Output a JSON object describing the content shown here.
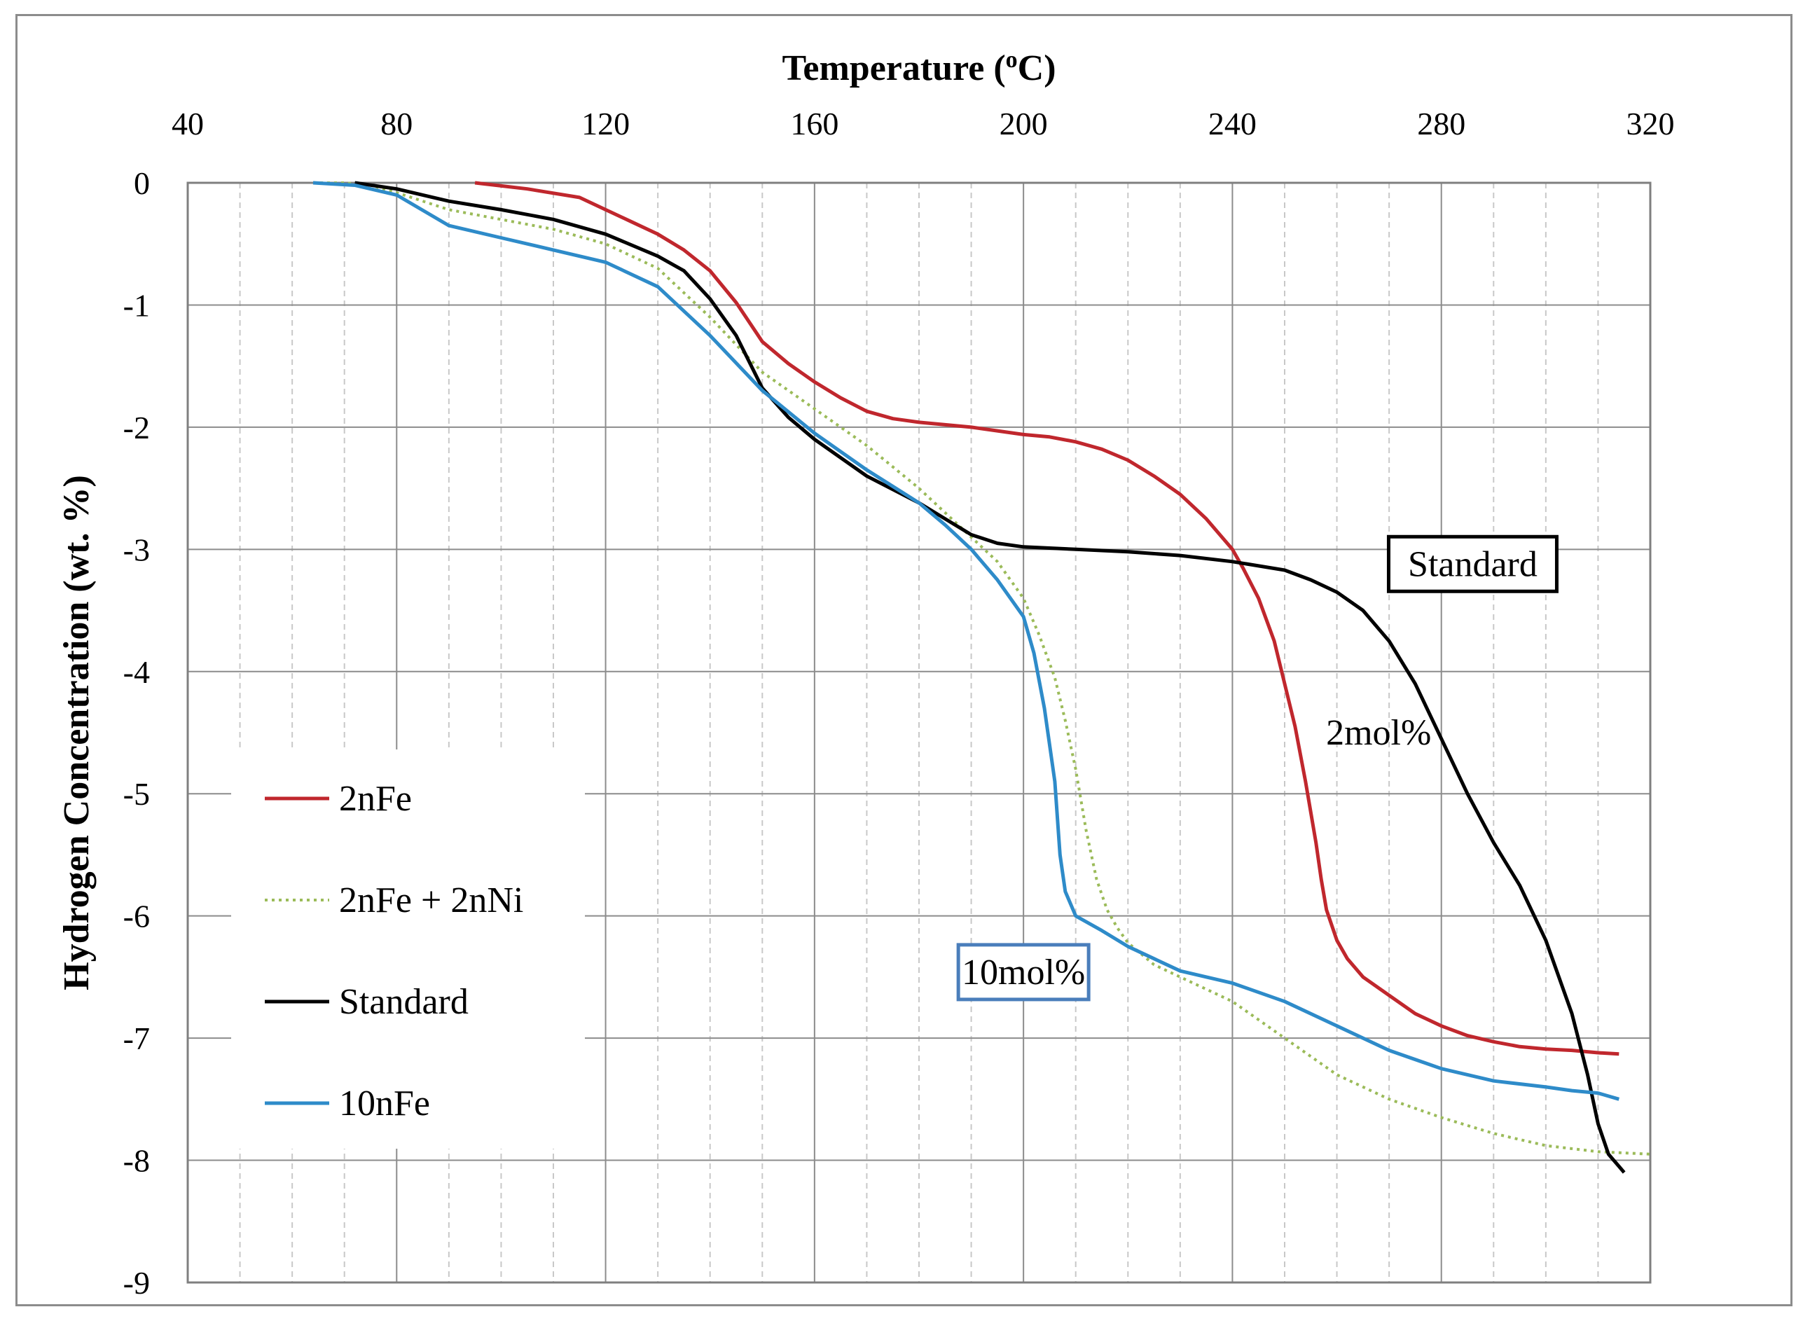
{
  "chart_data": {
    "type": "line",
    "title": "",
    "xlabel": "Temperature (",
    "xlabel_super": "o",
    "xlabel_tail": "C)",
    "ylabel": "Hydrogen Concentration (wt. %)",
    "xlim": [
      40,
      320
    ],
    "ylim": [
      -9,
      0
    ],
    "x_ticks": [
      40,
      80,
      120,
      160,
      200,
      240,
      280,
      320
    ],
    "y_ticks": [
      0,
      -1,
      -2,
      -3,
      -4,
      -5,
      -6,
      -7,
      -8,
      -9
    ],
    "x_tick_labels": [
      "40",
      "80",
      "120",
      "160",
      "200",
      "240",
      "280",
      "320"
    ],
    "y_tick_labels": [
      "0",
      "-1",
      "-2",
      "-3",
      "-4",
      "-5",
      "-6",
      "-7",
      "-8",
      "-9"
    ],
    "x_axis_position": "top",
    "grid": true,
    "legend_position": "bottom-left",
    "colors": {
      "2nFe": "#c0272d",
      "2nFe + 2nNi": "#9bbb59",
      "Standard": "#000000",
      "10nFe": "#2e8bc9"
    },
    "series": [
      {
        "name": "2nFe",
        "style": "solid",
        "x": [
          95,
          105,
          115,
          120,
          125,
          130,
          135,
          140,
          145,
          150,
          155,
          160,
          165,
          170,
          175,
          180,
          185,
          190,
          195,
          200,
          205,
          210,
          215,
          220,
          225,
          230,
          235,
          240,
          242,
          245,
          248,
          250,
          252,
          254,
          256,
          257,
          258,
          260,
          262,
          265,
          270,
          275,
          280,
          285,
          290,
          295,
          300,
          305,
          310,
          314
        ],
        "y": [
          0,
          -0.05,
          -0.12,
          -0.22,
          -0.32,
          -0.42,
          -0.55,
          -0.72,
          -0.98,
          -1.3,
          -1.48,
          -1.63,
          -1.76,
          -1.87,
          -1.93,
          -1.96,
          -1.98,
          -2.0,
          -2.03,
          -2.06,
          -2.08,
          -2.12,
          -2.18,
          -2.27,
          -2.4,
          -2.55,
          -2.75,
          -3.0,
          -3.15,
          -3.4,
          -3.75,
          -4.1,
          -4.45,
          -4.9,
          -5.4,
          -5.7,
          -5.95,
          -6.2,
          -6.35,
          -6.5,
          -6.65,
          -6.8,
          -6.9,
          -6.98,
          -7.03,
          -7.07,
          -7.09,
          -7.1,
          -7.12,
          -7.13
        ]
      },
      {
        "name": "2nFe + 2nNi",
        "style": "dotted",
        "x": [
          64,
          70,
          75,
          80,
          90,
          100,
          110,
          120,
          130,
          140,
          150,
          160,
          170,
          180,
          185,
          190,
          195,
          200,
          203,
          206,
          208,
          210,
          212,
          214,
          216,
          218,
          220,
          225,
          230,
          235,
          240,
          245,
          250,
          260,
          270,
          280,
          290,
          300,
          310,
          320
        ],
        "y": [
          0,
          0,
          -0.02,
          -0.08,
          -0.22,
          -0.3,
          -0.38,
          -0.5,
          -0.7,
          -1.1,
          -1.55,
          -1.85,
          -2.15,
          -2.5,
          -2.7,
          -2.9,
          -3.1,
          -3.4,
          -3.7,
          -4.05,
          -4.4,
          -4.8,
          -5.3,
          -5.7,
          -5.95,
          -6.1,
          -6.22,
          -6.4,
          -6.5,
          -6.6,
          -6.7,
          -6.85,
          -7.0,
          -7.3,
          -7.5,
          -7.65,
          -7.78,
          -7.88,
          -7.93,
          -7.95
        ]
      },
      {
        "name": "Standard",
        "style": "solid",
        "x": [
          72,
          80,
          90,
          100,
          110,
          120,
          130,
          135,
          140,
          145,
          150,
          155,
          160,
          170,
          180,
          185,
          190,
          195,
          200,
          210,
          220,
          230,
          240,
          250,
          255,
          260,
          265,
          270,
          275,
          280,
          285,
          290,
          295,
          300,
          305,
          308,
          310,
          312,
          314,
          315
        ],
        "y": [
          0,
          -0.05,
          -0.15,
          -0.22,
          -0.3,
          -0.42,
          -0.6,
          -0.72,
          -0.95,
          -1.25,
          -1.68,
          -1.92,
          -2.1,
          -2.4,
          -2.62,
          -2.75,
          -2.88,
          -2.95,
          -2.98,
          -3.0,
          -3.02,
          -3.05,
          -3.1,
          -3.17,
          -3.25,
          -3.35,
          -3.5,
          -3.75,
          -4.1,
          -4.55,
          -5.0,
          -5.4,
          -5.75,
          -6.2,
          -6.8,
          -7.3,
          -7.7,
          -7.95,
          -8.05,
          -8.1
        ]
      },
      {
        "name": "10nFe",
        "style": "solid",
        "x": [
          64,
          72,
          80,
          90,
          100,
          110,
          120,
          130,
          140,
          150,
          160,
          170,
          180,
          185,
          190,
          195,
          200,
          202,
          204,
          206,
          207,
          208,
          210,
          215,
          220,
          230,
          240,
          250,
          260,
          270,
          280,
          290,
          300,
          305,
          310,
          314
        ],
        "y": [
          0,
          -0.02,
          -0.1,
          -0.35,
          -0.45,
          -0.55,
          -0.65,
          -0.85,
          -1.25,
          -1.7,
          -2.05,
          -2.35,
          -2.62,
          -2.8,
          -3.0,
          -3.25,
          -3.55,
          -3.85,
          -4.3,
          -4.9,
          -5.5,
          -5.8,
          -6.0,
          -6.12,
          -6.25,
          -6.45,
          -6.55,
          -6.7,
          -6.9,
          -7.1,
          -7.25,
          -7.35,
          -7.4,
          -7.43,
          -7.45,
          -7.5
        ]
      }
    ],
    "legend": {
      "items": [
        {
          "label": "2nFe"
        },
        {
          "label": "2nFe + 2nNi"
        },
        {
          "label": "Standard"
        },
        {
          "label": "10nFe"
        }
      ]
    },
    "annotations": [
      {
        "text": "Standard",
        "x": 286,
        "y": -3.12,
        "boxed": true,
        "box_color": "#000000"
      },
      {
        "text": "2mol%",
        "x": 268,
        "y": -4.5,
        "boxed": false
      },
      {
        "text": "10mol%",
        "x": 200,
        "y": -6.46,
        "boxed": true,
        "box_color": "#4a7ebb"
      }
    ]
  }
}
